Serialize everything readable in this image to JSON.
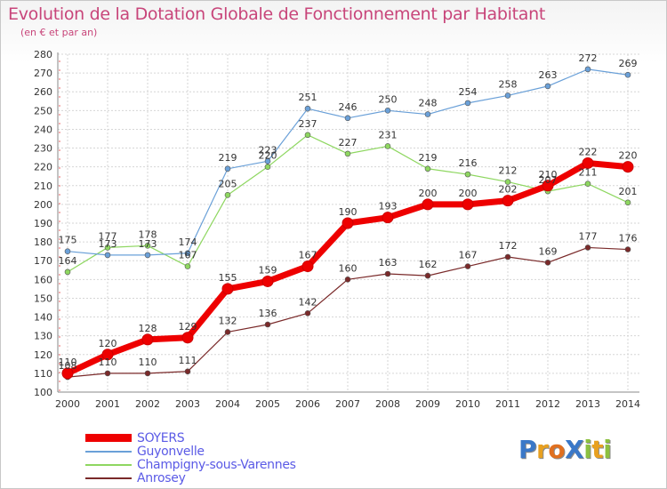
{
  "chart_data": {
    "type": "line",
    "title": "Evolution de la Dotation Globale de Fonctionnement par Habitant",
    "subtitle": "(en € et par an)",
    "xlabel": "",
    "ylabel": "",
    "x": [
      "2000",
      "2001",
      "2002",
      "2003",
      "2004",
      "2005",
      "2006",
      "2007",
      "2008",
      "2009",
      "2010",
      "2011",
      "2012",
      "2013",
      "2014"
    ],
    "ylim": [
      100,
      280
    ],
    "yticks": [
      100,
      110,
      120,
      130,
      140,
      150,
      160,
      170,
      180,
      190,
      200,
      210,
      220,
      230,
      240,
      250,
      260,
      270,
      280
    ],
    "grid": true,
    "legend_position": "bottom-left",
    "series": [
      {
        "name": "SOYERS",
        "color": "#ee0000",
        "values": [
          110,
          120,
          128,
          129,
          155,
          159,
          167,
          190,
          193,
          200,
          200,
          202,
          210,
          222,
          220
        ]
      },
      {
        "name": "Guyonvelle",
        "color": "#6aa0d8",
        "values": [
          175,
          173,
          173,
          174,
          219,
          223,
          251,
          246,
          250,
          248,
          254,
          258,
          263,
          272,
          269
        ]
      },
      {
        "name": "Champigny-sous-Varennes",
        "color": "#8ed760",
        "values": [
          164,
          177,
          178,
          167,
          205,
          220,
          237,
          227,
          231,
          219,
          216,
          212,
          207,
          211,
          201
        ]
      },
      {
        "name": "Anrosey",
        "color": "#7a2a2a",
        "values": [
          108,
          110,
          110,
          111,
          132,
          136,
          142,
          160,
          163,
          162,
          167,
          172,
          169,
          177,
          176
        ]
      }
    ]
  },
  "logo": {
    "text": "ProXiti",
    "letters": [
      {
        "ch": "P",
        "color": "#3a78c8"
      },
      {
        "ch": "r",
        "color": "#e8a020"
      },
      {
        "ch": "o",
        "color": "#e07020"
      },
      {
        "ch": "X",
        "color": "#3a78c8"
      },
      {
        "ch": "i",
        "color": "#8cc040"
      },
      {
        "ch": "t",
        "color": "#e8a020"
      },
      {
        "ch": "i",
        "color": "#8cc040"
      }
    ]
  }
}
